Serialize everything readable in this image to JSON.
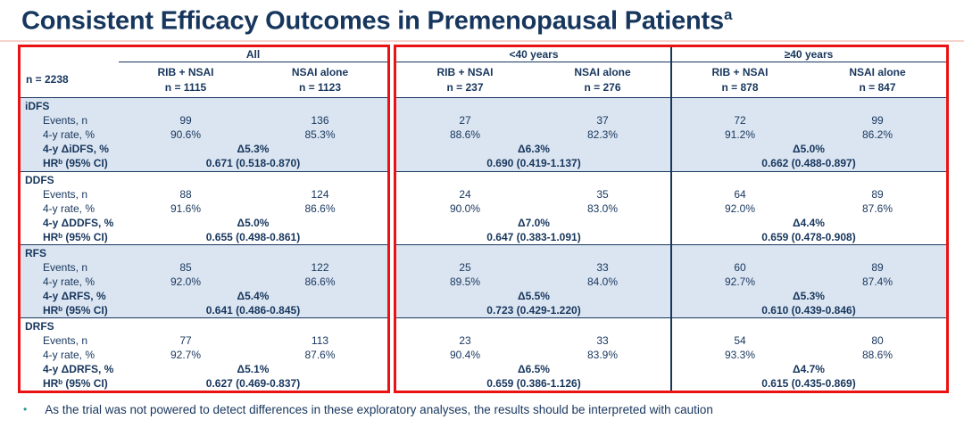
{
  "title": {
    "text": "Consistent Efficacy Outcomes in Premenopausal Patients",
    "superscript": "a"
  },
  "table": {
    "n_label": "n = 2238",
    "groups": [
      {
        "label": "All",
        "columns": [
          {
            "arm": "RIB + NSAI",
            "n": "n = 1115"
          },
          {
            "arm": "NSAI alone",
            "n": "n = 1123"
          }
        ]
      },
      {
        "label": "<40 years",
        "columns": [
          {
            "arm": "RIB + NSAI",
            "n": "n = 237"
          },
          {
            "arm": "NSAI alone",
            "n": "n = 276"
          }
        ]
      },
      {
        "label": "≥40 years",
        "columns": [
          {
            "arm": "RIB + NSAI",
            "n": "n = 878"
          },
          {
            "arm": "NSAI alone",
            "n": "n = 847"
          }
        ]
      }
    ],
    "sections": [
      {
        "name": "iDFS",
        "labels": {
          "events": "Events, n",
          "rate": "4-y rate, %",
          "delta": "4-y ΔiDFS, %",
          "hr": "HRᵇ (95% CI)"
        },
        "all": {
          "events": [
            "99",
            "136"
          ],
          "rates": [
            "90.6%",
            "85.3%"
          ],
          "delta": "Δ5.3%",
          "hr": "0.671 (0.518-0.870)"
        },
        "under40": {
          "events": [
            "27",
            "37"
          ],
          "rates": [
            "88.6%",
            "82.3%"
          ],
          "delta": "Δ6.3%",
          "hr": "0.690 (0.419-1.137)"
        },
        "over40": {
          "events": [
            "72",
            "99"
          ],
          "rates": [
            "91.2%",
            "86.2%"
          ],
          "delta": "Δ5.0%",
          "hr": "0.662 (0.488-0.897)"
        }
      },
      {
        "name": "DDFS",
        "labels": {
          "events": "Events, n",
          "rate": "4-y rate, %",
          "delta": "4-y ΔDDFS, %",
          "hr": "HRᵇ (95% CI)"
        },
        "all": {
          "events": [
            "88",
            "124"
          ],
          "rates": [
            "91.6%",
            "86.6%"
          ],
          "delta": "Δ5.0%",
          "hr": "0.655 (0.498-0.861)"
        },
        "under40": {
          "events": [
            "24",
            "35"
          ],
          "rates": [
            "90.0%",
            "83.0%"
          ],
          "delta": "Δ7.0%",
          "hr": "0.647 (0.383-1.091)"
        },
        "over40": {
          "events": [
            "64",
            "89"
          ],
          "rates": [
            "92.0%",
            "87.6%"
          ],
          "delta": "Δ4.4%",
          "hr": "0.659 (0.478-0.908)"
        }
      },
      {
        "name": "RFS",
        "labels": {
          "events": "Events, n",
          "rate": "4-y rate, %",
          "delta": "4-y ΔRFS, %",
          "hr": "HRᵇ (95% CI)"
        },
        "all": {
          "events": [
            "85",
            "122"
          ],
          "rates": [
            "92.0%",
            "86.6%"
          ],
          "delta": "Δ5.4%",
          "hr": "0.641 (0.486-0.845)"
        },
        "under40": {
          "events": [
            "25",
            "33"
          ],
          "rates": [
            "89.5%",
            "84.0%"
          ],
          "delta": "Δ5.5%",
          "hr": "0.723 (0.429-1.220)"
        },
        "over40": {
          "events": [
            "60",
            "89"
          ],
          "rates": [
            "92.7%",
            "87.4%"
          ],
          "delta": "Δ5.3%",
          "hr": "0.610 (0.439-0.846)"
        }
      },
      {
        "name": "DRFS",
        "labels": {
          "events": "Events, n",
          "rate": "4-y rate, %",
          "delta": "4-y ΔDRFS, %",
          "hr": "HRᵇ (95% CI)"
        },
        "all": {
          "events": [
            "77",
            "113"
          ],
          "rates": [
            "92.7%",
            "87.6%"
          ],
          "delta": "Δ5.1%",
          "hr": "0.627 (0.469-0.837)"
        },
        "under40": {
          "events": [
            "23",
            "33"
          ],
          "rates": [
            "90.4%",
            "83.9%"
          ],
          "delta": "Δ6.5%",
          "hr": "0.659 (0.386-1.126)"
        },
        "over40": {
          "events": [
            "54",
            "80"
          ],
          "rates": [
            "93.3%",
            "88.6%"
          ],
          "delta": "Δ4.7%",
          "hr": "0.615 (0.435-0.869)"
        }
      }
    ]
  },
  "footnote": {
    "bullet": "•",
    "text": "As the trial was not powered to detect differences in these exploratory analyses, the results should be interpreted with caution"
  }
}
